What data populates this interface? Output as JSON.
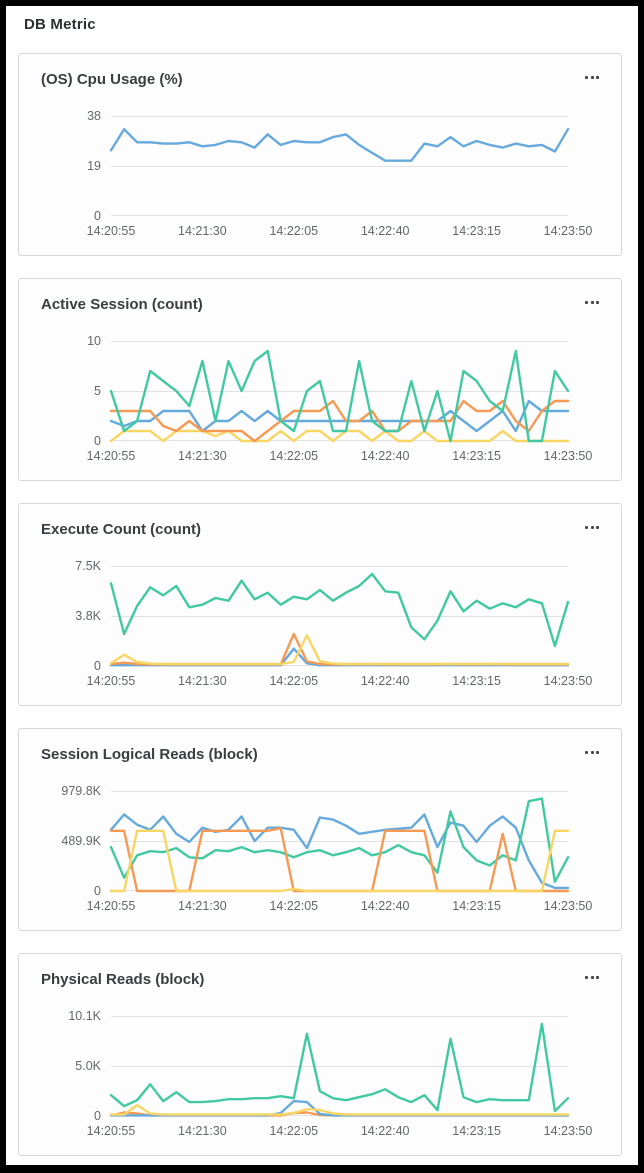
{
  "page": {
    "title": "DB Metric"
  },
  "icons": {
    "card_menu": "more-horizontal-icon"
  },
  "colors": {
    "blue": "#66a9dd",
    "green": "#42c9a1",
    "orange": "#f59a55",
    "yellow": "#f8d664",
    "grid": "#e2e2e2",
    "axis_text": "#63676b",
    "title_text": "#3a3e42",
    "card_border": "#d8d8d8",
    "card_bg": "#fdfdfd",
    "frame": "#000000"
  },
  "menu_tooltip": "",
  "chart_data": [
    {
      "type": "line",
      "title": "(OS) Cpu Usage (%)",
      "y_ticks": [
        "38",
        "19",
        "0"
      ],
      "ylim": [
        0,
        38
      ],
      "x_labels": [
        "14:20:55",
        "14:21:30",
        "14:22:05",
        "14:22:40",
        "14:23:15",
        "14:23:50"
      ],
      "grid": "horizontal",
      "legend": "none",
      "series": [
        {
          "name": "cpu-usage",
          "color": "#66a9dd",
          "values": [
            25,
            33,
            28,
            28,
            27.5,
            27.5,
            28,
            26.5,
            27,
            28.5,
            28,
            26,
            31,
            27,
            28.5,
            28,
            28,
            30,
            31,
            27,
            24,
            21,
            21,
            21,
            27.5,
            26.5,
            30,
            26.5,
            28.5,
            27,
            26,
            27.5,
            26.5,
            27,
            24.5,
            33
          ]
        }
      ]
    },
    {
      "type": "line",
      "title": "Active Session (count)",
      "y_ticks": [
        "10",
        "5",
        "0"
      ],
      "ylim": [
        0,
        10
      ],
      "x_labels": [
        "14:20:55",
        "14:21:30",
        "14:22:05",
        "14:22:40",
        "14:23:15",
        "14:23:50"
      ],
      "grid": "horizontal",
      "legend": "none",
      "series": [
        {
          "name": "session-yellow",
          "color": "#f8d664",
          "values": [
            0,
            1,
            1,
            1,
            0,
            1,
            1,
            1,
            0.5,
            1,
            0,
            0,
            0,
            1,
            0,
            1,
            1,
            0,
            1,
            1,
            0,
            1,
            0,
            0,
            1,
            0,
            0,
            0,
            0,
            0,
            1,
            0,
            0,
            0,
            0,
            0
          ]
        },
        {
          "name": "session-blue",
          "color": "#66a9dd",
          "values": [
            2,
            1.5,
            2,
            2,
            3,
            3,
            3,
            1,
            2,
            2,
            3,
            2,
            3,
            2,
            2,
            2,
            2,
            2,
            2,
            2,
            2,
            2,
            2,
            2,
            2,
            2,
            3,
            2,
            1,
            2,
            3,
            1,
            4,
            3,
            3,
            3
          ]
        },
        {
          "name": "session-orange",
          "color": "#f59a55",
          "values": [
            3,
            3,
            3,
            3,
            1.5,
            1,
            2,
            1,
            1,
            1,
            1,
            0,
            1,
            2,
            3,
            3,
            3,
            4,
            2,
            2,
            3,
            1,
            1,
            2,
            2,
            2,
            2,
            4,
            3,
            3,
            4,
            2,
            1,
            3,
            4,
            4
          ]
        },
        {
          "name": "session-green",
          "color": "#42c9a1",
          "values": [
            5,
            1,
            2,
            7,
            6,
            5,
            3.5,
            8,
            2,
            8,
            5,
            8,
            9,
            2,
            1,
            5,
            6,
            1,
            1,
            8,
            2,
            1,
            1,
            6,
            1,
            5,
            0,
            7,
            6,
            4,
            3,
            9,
            0,
            0,
            7,
            5
          ]
        }
      ]
    },
    {
      "type": "line",
      "title": "Execute Count (count)",
      "y_ticks": [
        "7.5K",
        "3.8K",
        "0"
      ],
      "ylim": [
        0,
        7500
      ],
      "x_labels": [
        "14:20:55",
        "14:21:30",
        "14:22:05",
        "14:22:40",
        "14:23:15",
        "14:23:50"
      ],
      "grid": "horizontal",
      "legend": "none",
      "series": [
        {
          "name": "execute-blue",
          "color": "#66a9dd",
          "values": [
            60,
            60,
            60,
            60,
            60,
            60,
            60,
            60,
            60,
            60,
            60,
            60,
            60,
            60,
            1300,
            200,
            60,
            60,
            60,
            60,
            60,
            60,
            60,
            60,
            60,
            60,
            60,
            60,
            60,
            60,
            60,
            60,
            60,
            60,
            60,
            60
          ]
        },
        {
          "name": "execute-orange",
          "color": "#f59a55",
          "values": [
            150,
            250,
            150,
            120,
            120,
            120,
            120,
            120,
            120,
            120,
            120,
            120,
            120,
            120,
            2400,
            350,
            150,
            120,
            120,
            120,
            150,
            120,
            120,
            120,
            120,
            120,
            150,
            120,
            120,
            150,
            120,
            120,
            120,
            120,
            120,
            120
          ]
        },
        {
          "name": "execute-yellow",
          "color": "#f8d664",
          "values": [
            200,
            850,
            300,
            180,
            150,
            150,
            150,
            150,
            150,
            150,
            150,
            150,
            150,
            150,
            300,
            2300,
            350,
            180,
            150,
            150,
            150,
            150,
            150,
            150,
            150,
            150,
            150,
            150,
            150,
            150,
            150,
            150,
            150,
            150,
            150,
            150
          ]
        },
        {
          "name": "execute-green",
          "color": "#42c9a1",
          "values": [
            6200,
            2400,
            4500,
            5900,
            5300,
            6000,
            4400,
            4600,
            5100,
            4900,
            6400,
            5000,
            5500,
            4600,
            5200,
            5000,
            5700,
            4900,
            5500,
            6000,
            6900,
            5600,
            5500,
            2900,
            2000,
            3400,
            5600,
            4100,
            4900,
            4300,
            4700,
            4400,
            5000,
            4700,
            1500,
            4800
          ]
        }
      ]
    },
    {
      "type": "line",
      "title": "Session Logical Reads (block)",
      "y_ticks": [
        "979.8K",
        "489.9K",
        "0"
      ],
      "ylim": [
        0,
        979800
      ],
      "x_labels": [
        "14:20:55",
        "14:21:30",
        "14:22:05",
        "14:22:40",
        "14:23:15",
        "14:23:50"
      ],
      "grid": "horizontal",
      "legend": "none",
      "series": [
        {
          "name": "reads-blue",
          "color": "#66a9dd",
          "values": [
            600000,
            750000,
            650000,
            600000,
            730000,
            560000,
            480000,
            620000,
            580000,
            600000,
            730000,
            490000,
            620000,
            620000,
            600000,
            420000,
            720000,
            700000,
            640000,
            560000,
            580000,
            600000,
            610000,
            620000,
            750000,
            430000,
            670000,
            640000,
            480000,
            640000,
            730000,
            620000,
            300000,
            80000,
            30000,
            30000
          ]
        },
        {
          "name": "reads-green",
          "color": "#42c9a1",
          "values": [
            430000,
            130000,
            350000,
            390000,
            380000,
            420000,
            330000,
            320000,
            400000,
            390000,
            430000,
            380000,
            400000,
            380000,
            330000,
            380000,
            400000,
            350000,
            380000,
            420000,
            350000,
            380000,
            450000,
            380000,
            350000,
            180000,
            780000,
            430000,
            300000,
            250000,
            350000,
            300000,
            880000,
            905000,
            90000,
            330000
          ]
        },
        {
          "name": "reads-orange",
          "color": "#f59a55",
          "values": [
            590000,
            590000,
            0,
            0,
            0,
            0,
            0,
            590000,
            590000,
            590000,
            590000,
            590000,
            590000,
            615000,
            0,
            0,
            0,
            0,
            0,
            0,
            0,
            590000,
            590000,
            590000,
            590000,
            0,
            0,
            0,
            0,
            0,
            560000,
            0,
            0,
            0,
            0,
            0
          ]
        },
        {
          "name": "reads-yellow",
          "color": "#f8d664",
          "values": [
            0,
            0,
            590000,
            590000,
            590000,
            0,
            0,
            0,
            0,
            0,
            0,
            0,
            0,
            0,
            20000,
            0,
            0,
            0,
            0,
            0,
            0,
            0,
            0,
            0,
            0,
            0,
            0,
            0,
            0,
            0,
            0,
            0,
            0,
            0,
            590000,
            590000
          ]
        }
      ]
    },
    {
      "type": "line",
      "title": "Physical Reads (block)",
      "y_ticks": [
        "10.1K",
        "5.0K",
        "0"
      ],
      "ylim": [
        0,
        10100
      ],
      "x_labels": [
        "14:20:55",
        "14:21:30",
        "14:22:05",
        "14:22:40",
        "14:23:15",
        "14:23:50"
      ],
      "grid": "horizontal",
      "legend": "none",
      "series": [
        {
          "name": "physical-orange",
          "color": "#f59a55",
          "values": [
            60,
            350,
            250,
            60,
            60,
            60,
            60,
            60,
            60,
            60,
            60,
            60,
            60,
            60,
            300,
            350,
            100,
            60,
            60,
            60,
            60,
            60,
            60,
            60,
            60,
            60,
            60,
            60,
            60,
            60,
            60,
            60,
            60,
            60,
            60,
            60
          ]
        },
        {
          "name": "physical-blue",
          "color": "#66a9dd",
          "values": [
            60,
            60,
            60,
            60,
            60,
            60,
            60,
            60,
            60,
            60,
            60,
            60,
            60,
            300,
            1500,
            1400,
            200,
            60,
            60,
            60,
            60,
            60,
            60,
            60,
            60,
            60,
            60,
            60,
            60,
            60,
            60,
            60,
            60,
            60,
            60,
            60
          ]
        },
        {
          "name": "physical-yellow",
          "color": "#f8d664",
          "values": [
            150,
            150,
            1100,
            250,
            150,
            150,
            150,
            150,
            150,
            150,
            150,
            150,
            150,
            150,
            300,
            700,
            600,
            250,
            150,
            150,
            150,
            150,
            150,
            150,
            150,
            150,
            150,
            150,
            150,
            150,
            150,
            150,
            150,
            150,
            150,
            150
          ]
        },
        {
          "name": "physical-green",
          "color": "#42c9a1",
          "values": [
            2100,
            1000,
            1600,
            3200,
            1500,
            2400,
            1400,
            1400,
            1500,
            1700,
            1700,
            1800,
            1800,
            2000,
            1800,
            8300,
            2500,
            1800,
            1600,
            1900,
            2200,
            2700,
            1900,
            1400,
            2100,
            600,
            7800,
            1900,
            1400,
            1700,
            1600,
            1600,
            1600,
            9300,
            500,
            1800
          ]
        }
      ]
    }
  ]
}
